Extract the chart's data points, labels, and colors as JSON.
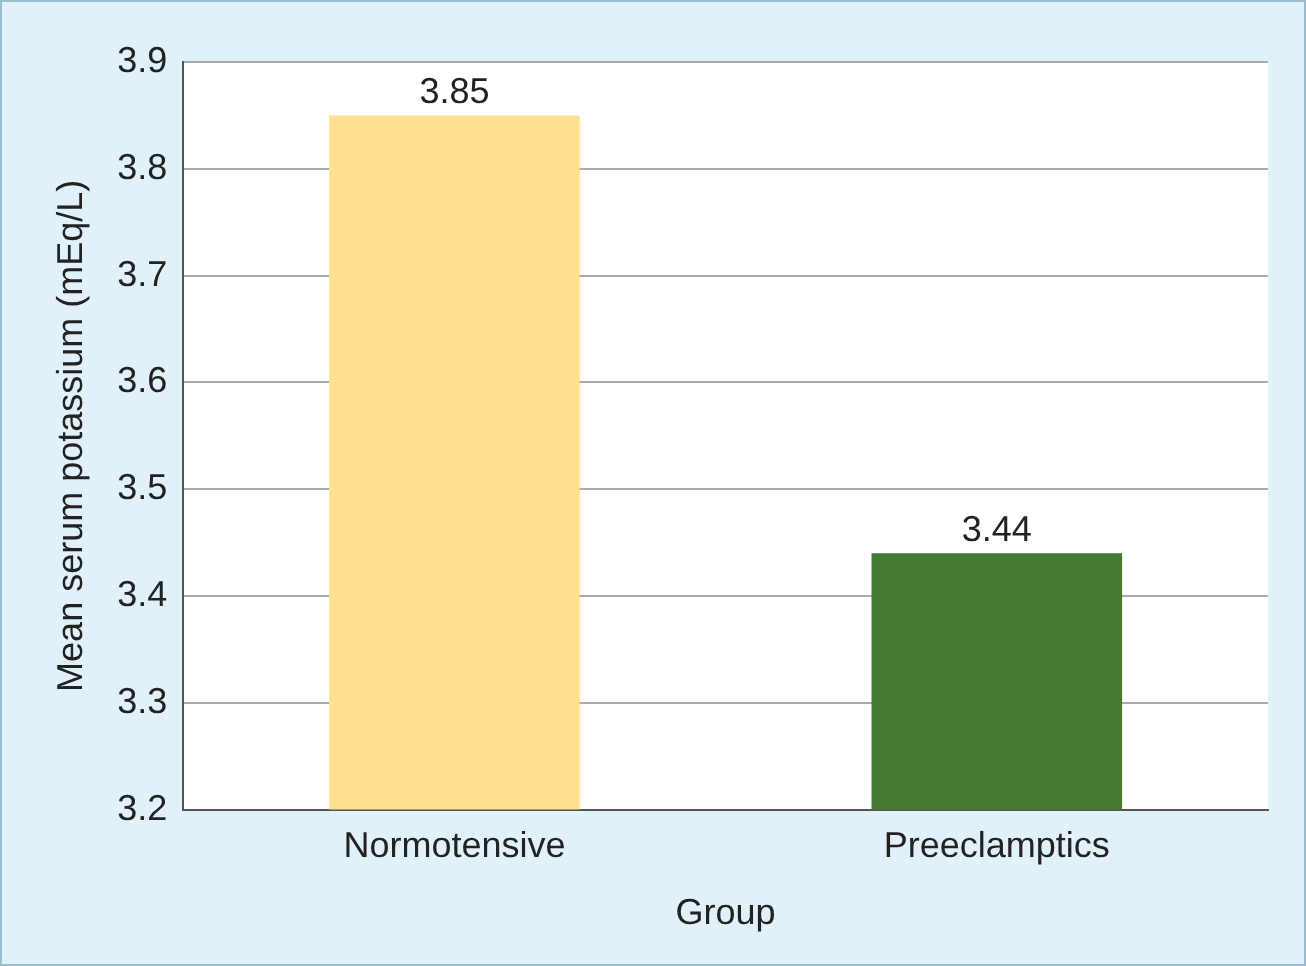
{
  "chart_data": {
    "type": "bar",
    "xlabel": "Group",
    "ylabel": "Mean serum potassium (mEq/L)",
    "categories": [
      "Normotensive",
      "Preeclamptics"
    ],
    "values": [
      3.85,
      3.44
    ],
    "colors": [
      "#fee08f",
      "#467a32"
    ],
    "ylim": [
      3.2,
      3.9
    ],
    "yticks": [
      3.2,
      3.3,
      3.4,
      3.5,
      3.6,
      3.7,
      3.8,
      3.9
    ],
    "grid": "y",
    "data_labels": true
  }
}
